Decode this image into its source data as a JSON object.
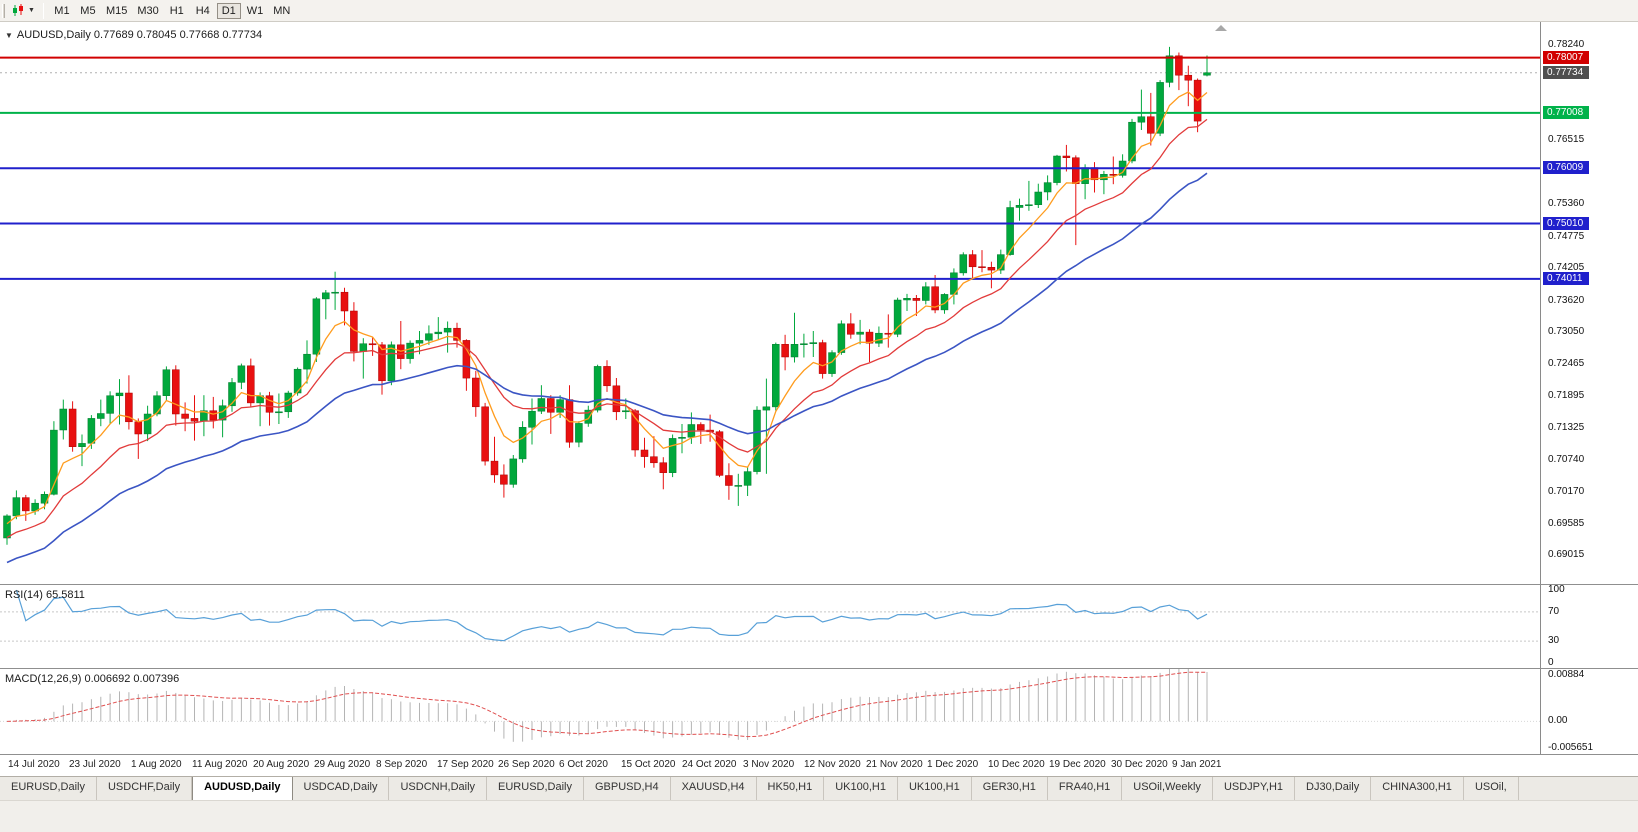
{
  "toolbar": {
    "timeframes": [
      "M1",
      "M5",
      "M15",
      "M30",
      "H1",
      "H4",
      "D1",
      "W1",
      "MN"
    ],
    "active_timeframe": "D1"
  },
  "icons": {
    "collapse": "▼",
    "caret": "▼"
  },
  "chart": {
    "title": "AUDUSD,Daily",
    "ohlc_text": "AUDUSD,Daily 0.77689 0.78045 0.77668 0.77734",
    "open": "0.77689",
    "high": "0.78045",
    "low": "0.77668",
    "close": "0.77734",
    "price_range": {
      "min": 0.685,
      "max": 0.7865
    },
    "y_axis_labels": [
      "0.78240",
      "0.76515",
      "0.75360",
      "0.74775",
      "0.74205",
      "0.73620",
      "0.73050",
      "0.72465",
      "0.71895",
      "0.71325",
      "0.70740",
      "0.70170",
      "0.69585",
      "0.69015"
    ],
    "hlines": [
      {
        "price": 0.78007,
        "label": "0.78007",
        "color": "#d10000",
        "name": "resistance-line"
      },
      {
        "price": 0.77008,
        "label": "0.77008",
        "color": "#00b24a",
        "name": "support-line-green"
      },
      {
        "price": 0.76009,
        "label": "0.76009",
        "color": "#2020cc",
        "name": "support-line-blue-1"
      },
      {
        "price": 0.7501,
        "label": "0.75010",
        "color": "#2020cc",
        "name": "support-line-blue-2"
      },
      {
        "price": 0.74011,
        "label": "0.74011",
        "color": "#2020cc",
        "name": "support-line-blue-3"
      }
    ],
    "current_price": {
      "value": 0.77734,
      "label": "0.77734",
      "color": "#4f4f4f"
    }
  },
  "chart_data": {
    "type": "candlestick",
    "symbol": "AUDUSD",
    "timeframe": "Daily",
    "up_color": "#00a83c",
    "down_color": "#e81010",
    "x_labels": [
      "14 Jul 2020",
      "23 Jul 2020",
      "1 Aug 2020",
      "11 Aug 2020",
      "20 Aug 2020",
      "29 Aug 2020",
      "8 Sep 2020",
      "17 Sep 2020",
      "26 Sep 2020",
      "6 Oct 2020",
      "15 Oct 2020",
      "24 Oct 2020",
      "3 Nov 2020",
      "12 Nov 2020",
      "21 Nov 2020",
      "1 Dec 2020",
      "10 Dec 2020",
      "19 Dec 2020",
      "30 Dec 2020",
      "9 Jan 2021"
    ],
    "candles_ohlc": [
      [
        0.6933,
        0.6976,
        0.6921,
        0.6973
      ],
      [
        0.6973,
        0.7019,
        0.6967,
        0.7006
      ],
      [
        0.7006,
        0.7011,
        0.6964,
        0.6982
      ],
      [
        0.6982,
        0.7003,
        0.6975,
        0.6996
      ],
      [
        0.6996,
        0.7017,
        0.6985,
        0.7012
      ],
      [
        0.7012,
        0.7144,
        0.701,
        0.7128
      ],
      [
        0.7128,
        0.7183,
        0.7111,
        0.7166
      ],
      [
        0.7166,
        0.718,
        0.7089,
        0.7098
      ],
      [
        0.7098,
        0.712,
        0.7063,
        0.7104
      ],
      [
        0.7104,
        0.7155,
        0.7094,
        0.7149
      ],
      [
        0.7149,
        0.7183,
        0.7135,
        0.7158
      ],
      [
        0.7158,
        0.7198,
        0.7139,
        0.719
      ],
      [
        0.719,
        0.722,
        0.7138,
        0.7195
      ],
      [
        0.7195,
        0.7227,
        0.7129,
        0.7143
      ],
      [
        0.7143,
        0.7149,
        0.7076,
        0.7121
      ],
      [
        0.7121,
        0.7172,
        0.7108,
        0.7157
      ],
      [
        0.7157,
        0.7198,
        0.7153,
        0.719
      ],
      [
        0.719,
        0.7243,
        0.7181,
        0.7237
      ],
      [
        0.7237,
        0.7245,
        0.7136,
        0.7157
      ],
      [
        0.7157,
        0.7178,
        0.7126,
        0.7149
      ],
      [
        0.7149,
        0.7191,
        0.7109,
        0.7144
      ],
      [
        0.7144,
        0.7191,
        0.7117,
        0.7163
      ],
      [
        0.7163,
        0.7188,
        0.7131,
        0.7146
      ],
      [
        0.7146,
        0.7183,
        0.7115,
        0.7172
      ],
      [
        0.7172,
        0.7222,
        0.7161,
        0.7214
      ],
      [
        0.7214,
        0.7248,
        0.7202,
        0.7244
      ],
      [
        0.7244,
        0.7257,
        0.7169,
        0.7177
      ],
      [
        0.7177,
        0.7196,
        0.7135,
        0.719
      ],
      [
        0.719,
        0.7197,
        0.7136,
        0.716
      ],
      [
        0.716,
        0.7194,
        0.7139,
        0.7161
      ],
      [
        0.7161,
        0.7199,
        0.715,
        0.7195
      ],
      [
        0.7195,
        0.7241,
        0.719,
        0.7238
      ],
      [
        0.7238,
        0.729,
        0.7212,
        0.7265
      ],
      [
        0.7265,
        0.7368,
        0.7251,
        0.7365
      ],
      [
        0.7365,
        0.7381,
        0.7328,
        0.7376
      ],
      [
        0.7376,
        0.7414,
        0.7345,
        0.7377
      ],
      [
        0.7377,
        0.7385,
        0.7317,
        0.7343
      ],
      [
        0.7343,
        0.7359,
        0.7252,
        0.727
      ],
      [
        0.727,
        0.7294,
        0.7221,
        0.7284
      ],
      [
        0.7284,
        0.7296,
        0.7262,
        0.7282
      ],
      [
        0.7282,
        0.7287,
        0.7192,
        0.7217
      ],
      [
        0.7217,
        0.7288,
        0.7209,
        0.7282
      ],
      [
        0.7282,
        0.7325,
        0.7238,
        0.7257
      ],
      [
        0.7257,
        0.729,
        0.7248,
        0.7285
      ],
      [
        0.7285,
        0.7307,
        0.7265,
        0.729
      ],
      [
        0.729,
        0.7317,
        0.7282,
        0.7302
      ],
      [
        0.7302,
        0.7332,
        0.7291,
        0.7305
      ],
      [
        0.7305,
        0.7324,
        0.7268,
        0.7312
      ],
      [
        0.7312,
        0.7322,
        0.7277,
        0.729
      ],
      [
        0.729,
        0.7292,
        0.7199,
        0.7222
      ],
      [
        0.7222,
        0.7235,
        0.7152,
        0.717
      ],
      [
        0.717,
        0.7177,
        0.7064,
        0.7072
      ],
      [
        0.7072,
        0.7116,
        0.7033,
        0.7047
      ],
      [
        0.7047,
        0.7066,
        0.7006,
        0.703
      ],
      [
        0.703,
        0.7083,
        0.7024,
        0.7076
      ],
      [
        0.7076,
        0.7144,
        0.7069,
        0.7133
      ],
      [
        0.7133,
        0.7185,
        0.7102,
        0.7162
      ],
      [
        0.7162,
        0.7209,
        0.7157,
        0.7185
      ],
      [
        0.7185,
        0.7191,
        0.7121,
        0.716
      ],
      [
        0.716,
        0.7191,
        0.715,
        0.7183
      ],
      [
        0.7183,
        0.7209,
        0.7096,
        0.7106
      ],
      [
        0.7106,
        0.7144,
        0.7097,
        0.714
      ],
      [
        0.714,
        0.7172,
        0.7134,
        0.7164
      ],
      [
        0.7164,
        0.7246,
        0.716,
        0.7243
      ],
      [
        0.7243,
        0.7254,
        0.7197,
        0.7208
      ],
      [
        0.7208,
        0.7222,
        0.7146,
        0.7161
      ],
      [
        0.7161,
        0.7185,
        0.7148,
        0.7163
      ],
      [
        0.7163,
        0.7166,
        0.708,
        0.7092
      ],
      [
        0.7092,
        0.7114,
        0.706,
        0.708
      ],
      [
        0.708,
        0.7117,
        0.706,
        0.7069
      ],
      [
        0.7069,
        0.7079,
        0.7021,
        0.7051
      ],
      [
        0.7051,
        0.712,
        0.7043,
        0.7113
      ],
      [
        0.7113,
        0.7139,
        0.7086,
        0.7115
      ],
      [
        0.7115,
        0.716,
        0.7103,
        0.7138
      ],
      [
        0.7138,
        0.7142,
        0.7103,
        0.7128
      ],
      [
        0.7128,
        0.7156,
        0.7107,
        0.7125
      ],
      [
        0.7125,
        0.7128,
        0.7043,
        0.7046
      ],
      [
        0.7046,
        0.7068,
        0.7002,
        0.7028
      ],
      [
        0.7028,
        0.7049,
        0.6991,
        0.7028
      ],
      [
        0.7028,
        0.7062,
        0.7009,
        0.7053
      ],
      [
        0.7053,
        0.7171,
        0.7048,
        0.7164
      ],
      [
        0.7164,
        0.7221,
        0.7049,
        0.717
      ],
      [
        0.717,
        0.7286,
        0.7163,
        0.7283
      ],
      [
        0.7283,
        0.73,
        0.7236,
        0.726
      ],
      [
        0.726,
        0.734,
        0.725,
        0.7283
      ],
      [
        0.7283,
        0.7302,
        0.7259,
        0.7284
      ],
      [
        0.7284,
        0.7307,
        0.726,
        0.7286
      ],
      [
        0.7286,
        0.7291,
        0.7221,
        0.723
      ],
      [
        0.723,
        0.7272,
        0.7224,
        0.7268
      ],
      [
        0.7268,
        0.7326,
        0.7264,
        0.732
      ],
      [
        0.732,
        0.7339,
        0.7293,
        0.7301
      ],
      [
        0.7301,
        0.7327,
        0.7283,
        0.7305
      ],
      [
        0.7305,
        0.731,
        0.7251,
        0.7285
      ],
      [
        0.7285,
        0.7315,
        0.7278,
        0.7303
      ],
      [
        0.7303,
        0.7337,
        0.7277,
        0.7301
      ],
      [
        0.7301,
        0.7367,
        0.7296,
        0.7363
      ],
      [
        0.7363,
        0.7374,
        0.7343,
        0.7366
      ],
      [
        0.7366,
        0.7372,
        0.7334,
        0.7362
      ],
      [
        0.7362,
        0.7395,
        0.7355,
        0.7387
      ],
      [
        0.7387,
        0.7408,
        0.7339,
        0.7345
      ],
      [
        0.7345,
        0.7375,
        0.7338,
        0.7373
      ],
      [
        0.7373,
        0.742,
        0.7355,
        0.7412
      ],
      [
        0.7412,
        0.7449,
        0.7407,
        0.7445
      ],
      [
        0.7445,
        0.7453,
        0.74,
        0.7423
      ],
      [
        0.7423,
        0.7453,
        0.7413,
        0.7422
      ],
      [
        0.7422,
        0.7432,
        0.7384,
        0.7417
      ],
      [
        0.7417,
        0.7454,
        0.741,
        0.7445
      ],
      [
        0.7445,
        0.7542,
        0.7443,
        0.753
      ],
      [
        0.753,
        0.7546,
        0.7506,
        0.7534
      ],
      [
        0.7534,
        0.7578,
        0.7524,
        0.7535
      ],
      [
        0.7535,
        0.7573,
        0.7529,
        0.7558
      ],
      [
        0.7558,
        0.7588,
        0.7543,
        0.7575
      ],
      [
        0.7575,
        0.7625,
        0.757,
        0.7623
      ],
      [
        0.7623,
        0.7643,
        0.7595,
        0.762
      ],
      [
        0.762,
        0.7624,
        0.7462,
        0.7573
      ],
      [
        0.7573,
        0.7608,
        0.7545,
        0.7602
      ],
      [
        0.7602,
        0.7612,
        0.7557,
        0.758
      ],
      [
        0.758,
        0.7596,
        0.7554,
        0.759
      ],
      [
        0.759,
        0.7622,
        0.7572,
        0.7588
      ],
      [
        0.7588,
        0.7626,
        0.7584,
        0.7614
      ],
      [
        0.7614,
        0.769,
        0.761,
        0.7684
      ],
      [
        0.7684,
        0.7743,
        0.767,
        0.7694
      ],
      [
        0.7694,
        0.7737,
        0.7642,
        0.7664
      ],
      [
        0.7664,
        0.776,
        0.7659,
        0.7756
      ],
      [
        0.7756,
        0.782,
        0.7747,
        0.7804
      ],
      [
        0.7804,
        0.781,
        0.7742,
        0.7769
      ],
      [
        0.7769,
        0.7786,
        0.7713,
        0.776
      ],
      [
        0.776,
        0.7763,
        0.7666,
        0.7686
      ],
      [
        0.77689,
        0.78045,
        0.77668,
        0.77734
      ]
    ],
    "moving_averages": [
      {
        "name": "fast-ma",
        "type": "ema",
        "period": 6,
        "color": "#ff9c1e",
        "width": 1.3
      },
      {
        "name": "mid-ma",
        "type": "ema",
        "period": 14,
        "color": "#e23b3b",
        "width": 1.3
      },
      {
        "name": "slow-ma",
        "type": "ema",
        "period": 30,
        "color": "#3b55c4",
        "width": 1.6
      }
    ],
    "rsi": {
      "label": "RSI(14) 65.5811",
      "period": 14,
      "value": "65.5811",
      "levels": [
        "100",
        "70",
        "30",
        "0"
      ],
      "color": "#58a0d8"
    },
    "macd": {
      "label": "MACD(12,26,9) 0.006692 0.007396",
      "fast": 12,
      "slow": 26,
      "signal_period": 9,
      "main_value": "0.006692",
      "signal_value": "0.007396",
      "axis_labels": [
        "0.00884",
        "0.00",
        "-0.005651"
      ],
      "histogram_color": "#b4b4b4",
      "signal_color": "#e05050"
    }
  },
  "tabs": {
    "active_index": 2,
    "items": [
      "EURUSD,Daily",
      "USDCHF,Daily",
      "AUDUSD,Daily",
      "USDCAD,Daily",
      "USDCNH,Daily",
      "EURUSD,Daily",
      "GBPUSD,H4",
      "XAUUSD,H4",
      "HK50,H1",
      "UK100,H1",
      "UK100,H1",
      "GER30,H1",
      "FRA40,H1",
      "USOil,Weekly",
      "USDJPY,H1",
      "DJ30,Daily",
      "CHINA300,H1",
      "USOil,"
    ]
  }
}
